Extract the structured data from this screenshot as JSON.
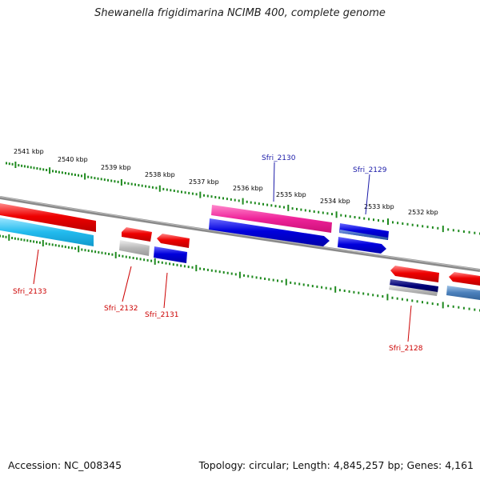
{
  "title": "Shewanella frigidimarina NCIMB 400, complete genome",
  "footer": {
    "accession": "Accession: NC_008345",
    "summary": "Topology: circular; Length: 4,845,257 bp; Genes: 4,161"
  },
  "scale_labels": [
    "2541 kbp",
    "2540 kbp",
    "2539 kbp",
    "2538 kbp",
    "2537 kbp",
    "2536 kbp",
    "2535 kbp",
    "2534 kbp",
    "2533 kbp",
    "2532 kbp"
  ],
  "genes_top": [
    {
      "label": "Sfri_2130",
      "color": "#1a1aa8"
    },
    {
      "label": "Sfri_2129",
      "color": "#1a1aa8"
    }
  ],
  "genes_bottom": [
    {
      "label": "Sfri_2133",
      "color": "#cc0000"
    },
    {
      "label": "Sfri_2132",
      "color": "#cc0000"
    },
    {
      "label": "Sfri_2131",
      "color": "#cc0000"
    },
    {
      "label": "Sfri_2128",
      "color": "#cc0000"
    }
  ],
  "colors": {
    "backbone": "#8a8a8a",
    "tick": "#1f8a1f",
    "feature_red": "#ee0000",
    "feature_blue": "#0000dd",
    "feature_cyan": "#22bbee",
    "feature_pink": "#ee2299",
    "feature_grey": "#b8b8b8",
    "feature_navy": "#000077",
    "feature_steel": "#4a7fbb"
  }
}
